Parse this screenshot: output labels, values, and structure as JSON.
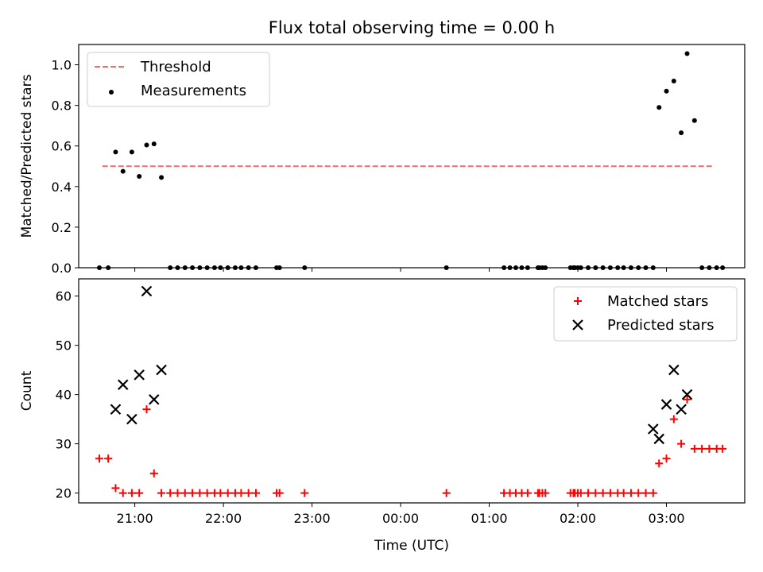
{
  "chart_data": [
    {
      "type": "scatter",
      "title": "Flux total observing time = 0.00 h",
      "ylabel": "Matched/Predicted stars",
      "xlabel": "",
      "xlim": [
        "20:22",
        "03:53"
      ],
      "ylim": [
        0,
        1.1
      ],
      "yticks": [
        0.0,
        0.2,
        0.4,
        0.6,
        0.8,
        1.0
      ],
      "xticks": [
        "21:00",
        "22:00",
        "23:00",
        "00:00",
        "01:00",
        "02:00",
        "03:00"
      ],
      "show_xtick_labels": false,
      "legend_position": "upper left",
      "series": [
        {
          "name": "Threshold",
          "style": "dashed-line",
          "color": "#ff6666",
          "x": [
            "20:38",
            "03:32"
          ],
          "y": [
            0.5,
            0.5
          ]
        },
        {
          "name": "Measurements",
          "style": "dot",
          "color": "#000000",
          "x": [
            "20:36",
            "20:42",
            "20:47",
            "20:52",
            "20:58",
            "21:03",
            "21:08",
            "21:13",
            "21:18",
            "21:24",
            "21:29",
            "21:34",
            "21:39",
            "21:44",
            "21:49",
            "21:54",
            "21:58",
            "22:03",
            "22:08",
            "22:12",
            "22:17",
            "22:22",
            "22:36",
            "22:38",
            "22:55",
            "00:31",
            "01:10",
            "01:14",
            "01:18",
            "01:22",
            "01:26",
            "01:33",
            "01:34",
            "01:36",
            "01:38",
            "01:55",
            "01:57",
            "01:58",
            "02:00",
            "02:02",
            "02:07",
            "02:12",
            "02:17",
            "02:22",
            "02:27",
            "02:31",
            "02:36",
            "02:41",
            "02:46",
            "02:51",
            "02:55",
            "03:00",
            "03:05",
            "03:10",
            "03:14",
            "03:19",
            "03:24",
            "03:29",
            "03:34",
            "03:38"
          ],
          "y": [
            0,
            0,
            0.57,
            0.475,
            0.57,
            0.45,
            0.605,
            0.61,
            0.445,
            0,
            0,
            0,
            0,
            0,
            0,
            0,
            0,
            0,
            0,
            0,
            0,
            0,
            0,
            0,
            0,
            0,
            0,
            0,
            0,
            0,
            0,
            0,
            0,
            0,
            0,
            0,
            0,
            0,
            0,
            0,
            0,
            0,
            0,
            0,
            0,
            0,
            0,
            0,
            0,
            0,
            0.79,
            0.87,
            0.92,
            0.665,
            1.055,
            0.725,
            0,
            0,
            0,
            0
          ]
        }
      ]
    },
    {
      "type": "scatter",
      "title": "",
      "ylabel": "Count",
      "xlabel": "Time (UTC)",
      "xlim": [
        "20:22",
        "03:53"
      ],
      "ylim": [
        18,
        63.5
      ],
      "yticks": [
        20,
        30,
        40,
        50,
        60
      ],
      "xticks": [
        "21:00",
        "22:00",
        "23:00",
        "00:00",
        "01:00",
        "02:00",
        "03:00"
      ],
      "show_xtick_labels": true,
      "legend_position": "upper right",
      "series": [
        {
          "name": "Matched stars",
          "style": "plus",
          "color": "#ff0000",
          "x": [
            "20:36",
            "20:42",
            "20:47",
            "20:52",
            "20:58",
            "21:03",
            "21:08",
            "21:13",
            "21:18",
            "21:24",
            "21:29",
            "21:34",
            "21:39",
            "21:44",
            "21:49",
            "21:54",
            "21:58",
            "22:03",
            "22:08",
            "22:12",
            "22:17",
            "22:22",
            "22:36",
            "22:38",
            "22:55",
            "00:31",
            "01:10",
            "01:14",
            "01:18",
            "01:22",
            "01:26",
            "01:33",
            "01:34",
            "01:36",
            "01:38",
            "01:55",
            "01:57",
            "01:58",
            "02:00",
            "02:02",
            "02:07",
            "02:12",
            "02:17",
            "02:22",
            "02:27",
            "02:31",
            "02:36",
            "02:41",
            "02:46",
            "02:51",
            "02:55",
            "03:00",
            "03:05",
            "03:10",
            "03:14",
            "03:19",
            "03:24",
            "03:29",
            "03:34",
            "03:38"
          ],
          "y": [
            27,
            27,
            21,
            20,
            20,
            20,
            37,
            24,
            20,
            20,
            20,
            20,
            20,
            20,
            20,
            20,
            20,
            20,
            20,
            20,
            20,
            20,
            20,
            20,
            20,
            20,
            20,
            20,
            20,
            20,
            20,
            20,
            20,
            20,
            20,
            20,
            20,
            20,
            20,
            20,
            20,
            20,
            20,
            20,
            20,
            20,
            20,
            20,
            20,
            20,
            26,
            27,
            35,
            30,
            39,
            29,
            29,
            29,
            29,
            29
          ]
        },
        {
          "name": "Predicted stars",
          "style": "x",
          "color": "#000000",
          "x": [
            "20:47",
            "20:52",
            "20:58",
            "21:03",
            "21:08",
            "21:13",
            "21:18",
            "02:51",
            "02:55",
            "03:00",
            "03:05",
            "03:10",
            "03:14"
          ],
          "y": [
            37,
            42,
            35,
            44,
            61,
            39,
            45,
            33,
            31,
            38,
            45,
            37,
            40
          ]
        }
      ]
    }
  ]
}
